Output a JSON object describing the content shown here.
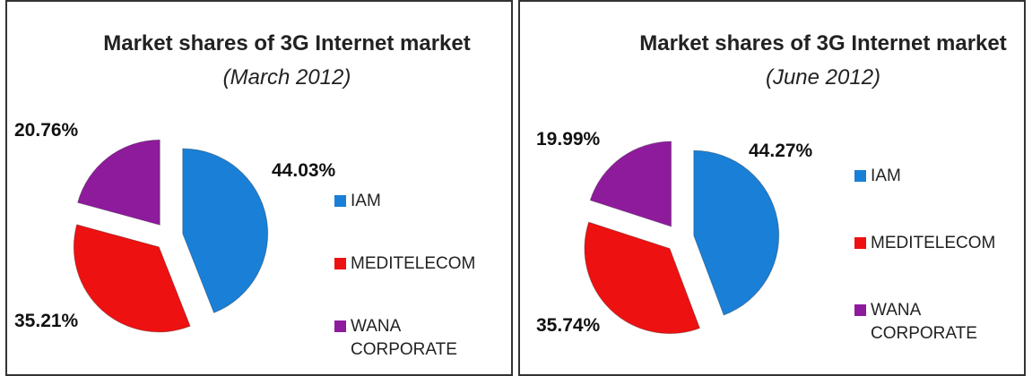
{
  "chart_data": [
    {
      "type": "pie",
      "title": "Market shares of 3G Internet market",
      "subtitle": "(March 2012)",
      "categories": [
        "IAM",
        "MEDITELECOM",
        "WANA CORPORATE"
      ],
      "values": [
        44.03,
        35.21,
        20.76
      ],
      "value_labels": [
        "44.03%",
        "35.21%",
        "20.76%"
      ],
      "colors": [
        "#1a7fd6",
        "#ee1111",
        "#8e1b9c"
      ]
    },
    {
      "type": "pie",
      "title": "Market shares of 3G Internet market",
      "subtitle": "(June 2012)",
      "categories": [
        "IAM",
        "MEDITELECOM",
        "WANA CORPORATE"
      ],
      "values": [
        44.27,
        35.74,
        19.99
      ],
      "value_labels": [
        "44.27%",
        "35.74%",
        "19.99%"
      ],
      "colors": [
        "#1a7fd6",
        "#ee1111",
        "#8e1b9c"
      ]
    }
  ]
}
